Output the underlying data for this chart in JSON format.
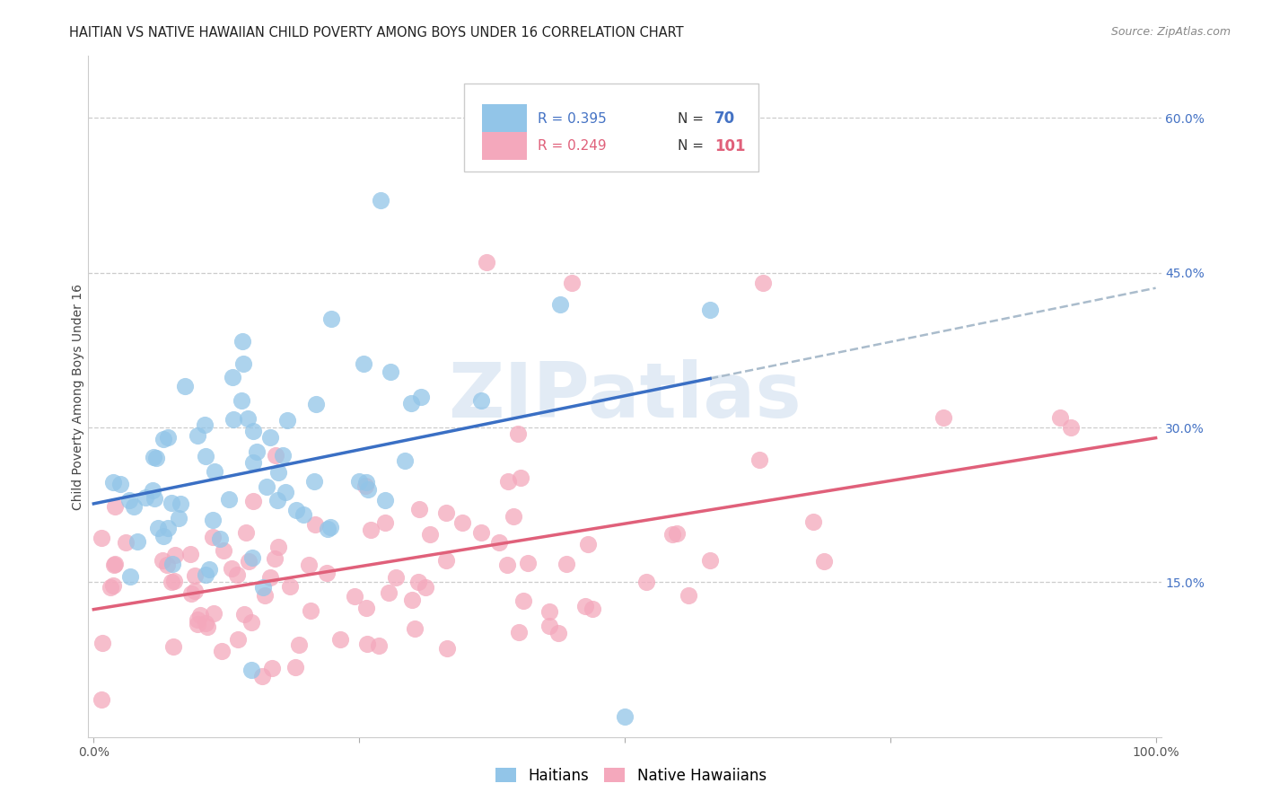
{
  "title": "HAITIAN VS NATIVE HAWAIIAN CHILD POVERTY AMONG BOYS UNDER 16 CORRELATION CHART",
  "source": "Source: ZipAtlas.com",
  "ylabel": "Child Poverty Among Boys Under 16",
  "R1": 0.395,
  "N1": 70,
  "R2": 0.249,
  "N2": 101,
  "legend_label1": "Haitians",
  "legend_label2": "Native Hawaiians",
  "color_blue": "#92C5E8",
  "color_pink": "#F4A8BC",
  "line_color_blue": "#3A6FC4",
  "line_color_pink": "#E0607A",
  "line_color_dashed": "#AABCCC",
  "watermark": "ZIPatlas",
  "bg_color": "#FFFFFF",
  "grid_color": "#CCCCCC",
  "title_color": "#222222",
  "source_color": "#888888",
  "ytick_color": "#4472C4",
  "xtick_color": "#555555",
  "seed": 42
}
